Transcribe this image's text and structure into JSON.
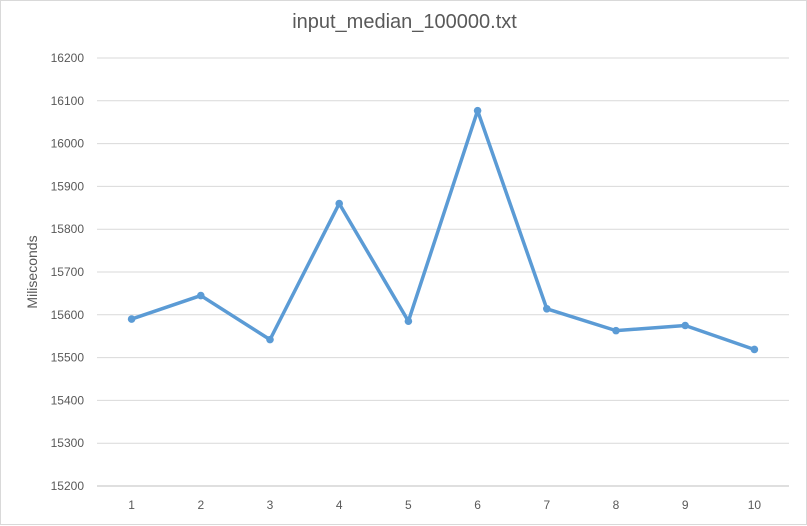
{
  "chart_data": {
    "type": "line",
    "title": "input_median_100000.txt",
    "xlabel": "",
    "ylabel": "Miliseconds",
    "categories": [
      "1",
      "2",
      "3",
      "4",
      "5",
      "6",
      "7",
      "8",
      "9",
      "10"
    ],
    "series": [
      {
        "values": [
          15590,
          15645,
          15542,
          15860,
          15585,
          16077,
          15614,
          15563,
          15575,
          15519
        ],
        "color": "#5b9bd5"
      }
    ],
    "ylim": [
      15200,
      16200
    ],
    "yticks": [
      15200,
      15300,
      15400,
      15500,
      15600,
      15700,
      15800,
      15900,
      16000,
      16100,
      16200
    ],
    "grid": true,
    "legend": "none"
  }
}
